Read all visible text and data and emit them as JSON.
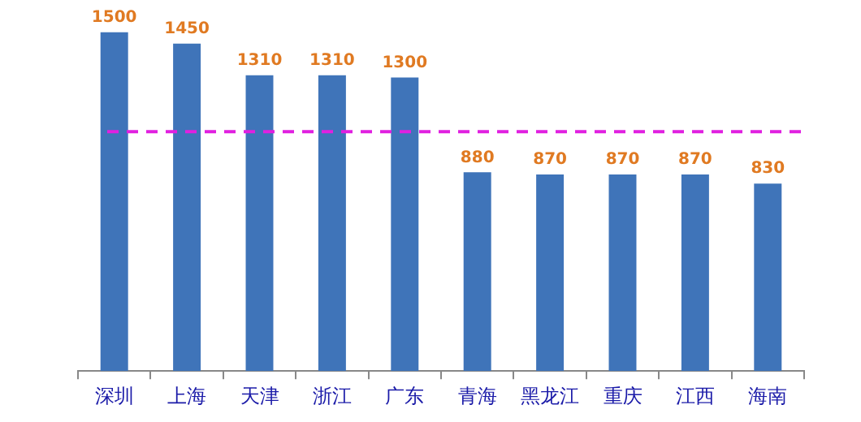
{
  "chart_data": {
    "type": "bar",
    "categories": [
      "深圳",
      "上海",
      "天津",
      "浙江",
      "广东",
      "青海",
      "黑龙江",
      "重庆",
      "江西",
      "海南"
    ],
    "values": [
      1500,
      1450,
      1310,
      1310,
      1300,
      880,
      870,
      870,
      870,
      830
    ],
    "color": "#3f74b9",
    "tick_labels": "x",
    "data_labels": true,
    "grid": false,
    "legend": false,
    "ref_lines": [
      {
        "axis": "y",
        "value": 1060,
        "color": "#e020e0",
        "line_style": "dashed"
      }
    ]
  }
}
